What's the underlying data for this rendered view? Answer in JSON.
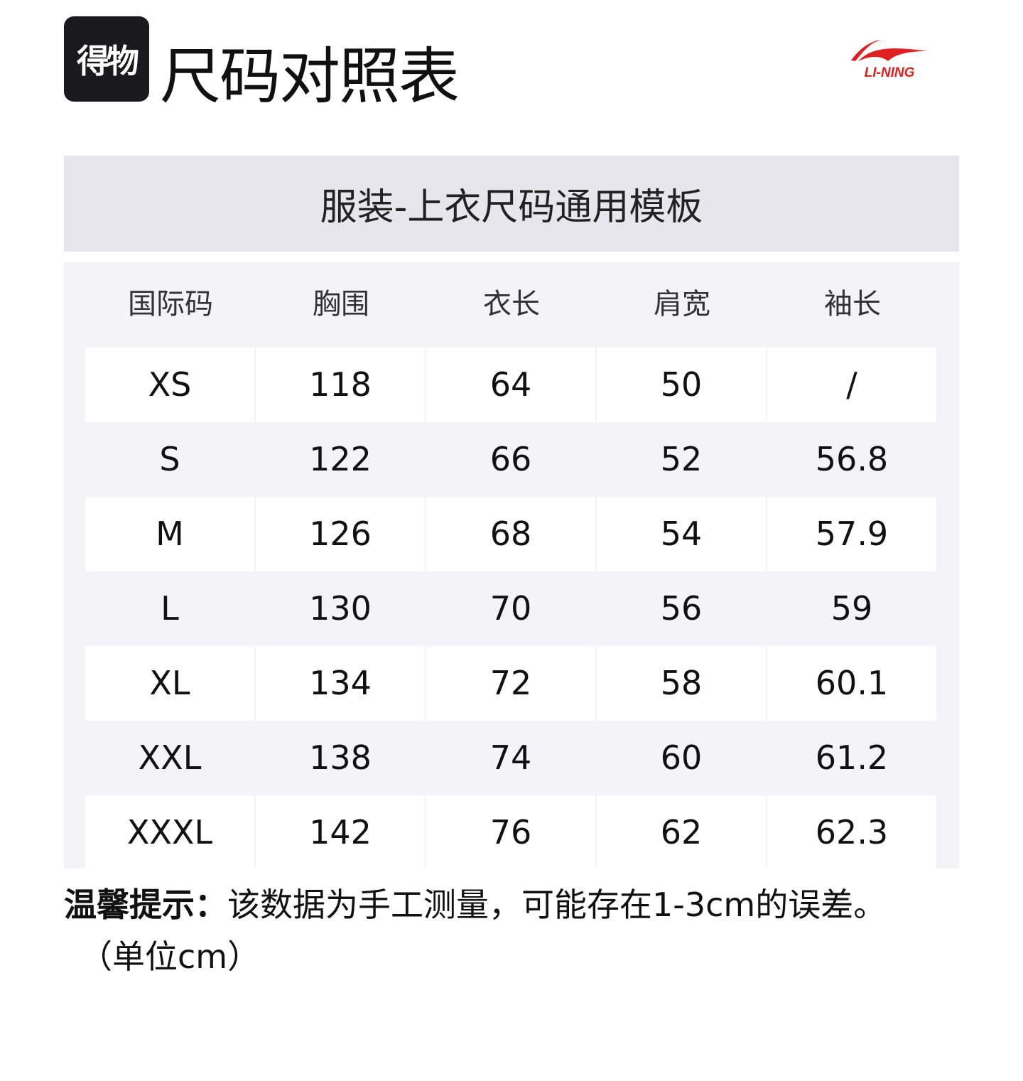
{
  "logo_badge": "得物",
  "title": "尺码对照表",
  "brand_logo": "LI-NING",
  "brand_color": "#e02020",
  "template_title": "服装-上衣尺码通用模板",
  "table": {
    "headers": [
      "国际码",
      "胸围",
      "衣长",
      "肩宽",
      "袖长"
    ],
    "rows": [
      [
        "XS",
        "118",
        "64",
        "50",
        "/"
      ],
      [
        "S",
        "122",
        "66",
        "52",
        "56.8"
      ],
      [
        "M",
        "126",
        "68",
        "54",
        "57.9"
      ],
      [
        "L",
        "130",
        "70",
        "56",
        "59"
      ],
      [
        "XL",
        "134",
        "72",
        "58",
        "60.1"
      ],
      [
        "XXL",
        "138",
        "74",
        "60",
        "61.2"
      ],
      [
        "XXXL",
        "142",
        "76",
        "62",
        "62.3"
      ]
    ]
  },
  "note": {
    "label": "温馨提示：",
    "text": "该数据为手工测量，可能存在1-3cm的误差。",
    "unit": "（单位cm）"
  }
}
